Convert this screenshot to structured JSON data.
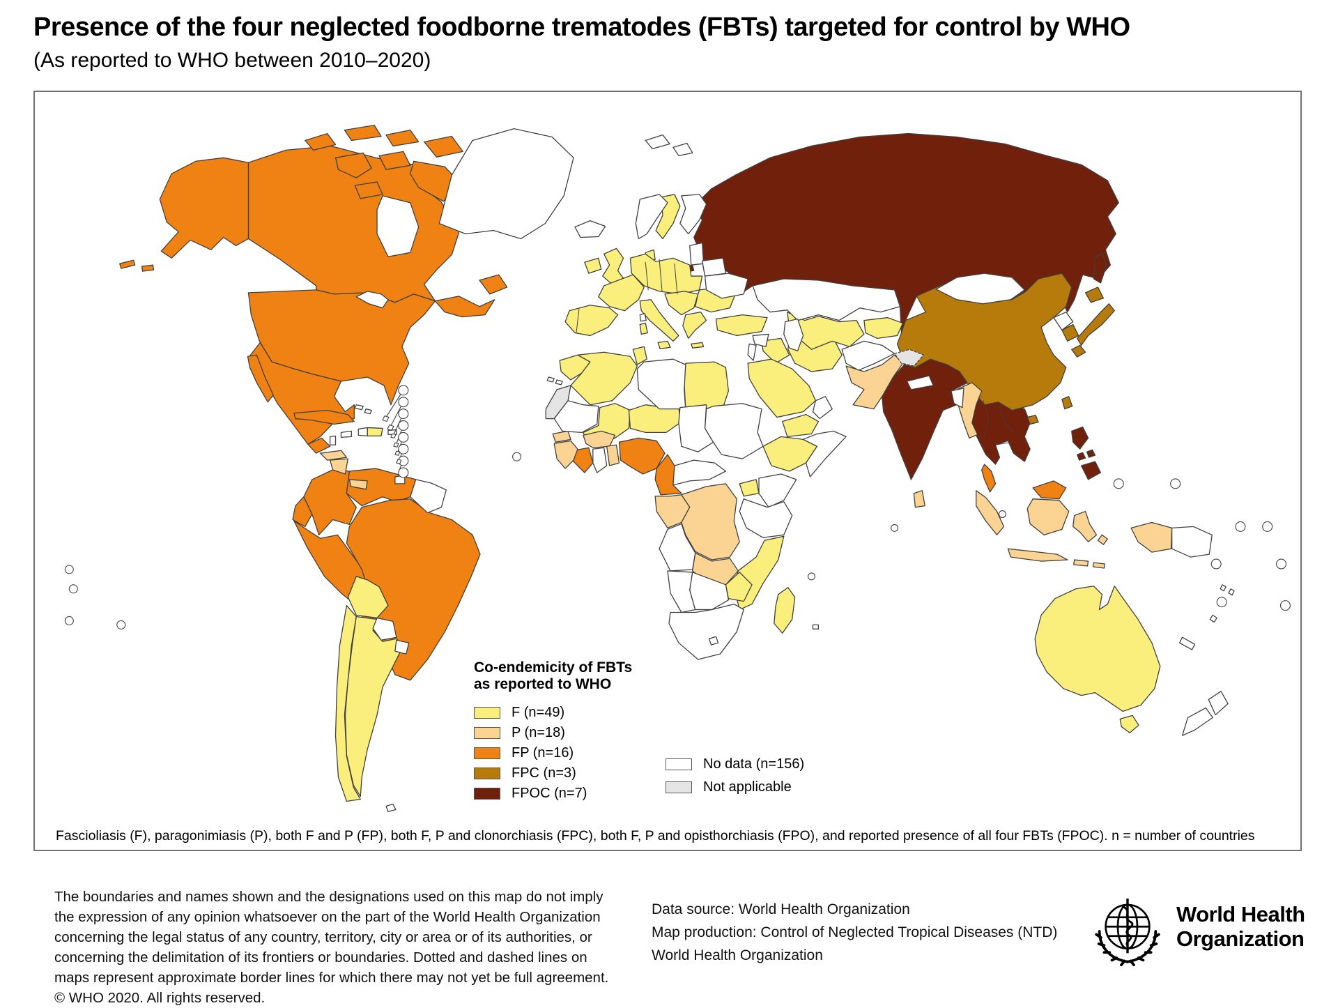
{
  "title": "Presence of the four neglected foodborne trematodes (FBTs) targeted for control by WHO",
  "subtitle": "(As reported to WHO between 2010–2020)",
  "map": {
    "legend": {
      "title_line1": "Co-endemicity of FBTs",
      "title_line2": "as reported to WHO",
      "items": [
        {
          "code": "F",
          "label": "F (n=49)",
          "color": "#FAEE7D"
        },
        {
          "code": "P",
          "label": "P (n=18)",
          "color": "#FBD494"
        },
        {
          "code": "FP",
          "label": "FP (n=16)",
          "color": "#F08214"
        },
        {
          "code": "FPC",
          "label": "FPC (n=3)",
          "color": "#B67B0B"
        },
        {
          "code": "FPOC",
          "label": "FPOC (n=7)",
          "color": "#71200C"
        }
      ],
      "extra_items": [
        {
          "code": "ND",
          "label": "No data (n=156)",
          "color": "#FFFFFF"
        },
        {
          "code": "NA",
          "label": "Not applicable",
          "color": "#E4E4E4"
        }
      ]
    },
    "footnote": "Fascioliasis (F), paragonimiasis (P), both F and P (FP), both F, P and clonorchiasis (FPC), both F, P and opisthorchiasis (FPO), and reported presence of all four FBTs (FPOC). n = number of countries",
    "colors": {
      "F": "#FAEE7D",
      "P": "#FBD494",
      "FP": "#F08214",
      "FPC": "#B67B0B",
      "FPOC": "#71200C",
      "ND": "#FFFFFF",
      "NA": "#E4E4E4",
      "border": "#3F3F3F"
    },
    "regions": {
      "greenland": "ND",
      "svalbard": "ND",
      "iceland": "ND",
      "alaska": "FP",
      "aleutians": "FP",
      "canada": "FP",
      "arctic-islands": "FP",
      "maritimes": "FP",
      "newfoundland": "FP",
      "usa": "FP",
      "mexico": "FP",
      "baja": "FP",
      "hudson-bay": "ND",
      "great-lakes": "ND",
      "guatemala": "FP",
      "belize": "ND",
      "honduras": "P",
      "nicaragua": "P",
      "costa-rica": "FP",
      "panama": "P",
      "cuba": "FP",
      "jamaica": "ND",
      "haiti": "ND",
      "dominican-republic": "F",
      "puerto-rico": "ND",
      "bahamas": "ND",
      "antilles-islands": "ND",
      "trinidad": "ND",
      "colombia": "FP",
      "venezuela": "FP",
      "guyanas": "ND",
      "ecuador": "FP",
      "peru": "FP",
      "brazil": "FP",
      "bolivia": "F",
      "paraguay": "ND",
      "chile": "F",
      "argentina": "F",
      "uruguay": "ND",
      "falklands": "ND",
      "ireland": "F",
      "uk": "F",
      "norway": "ND",
      "sweden": "F",
      "finland": "ND",
      "denmark": "F",
      "baltics": "ND",
      "kaliningrad": "FPOC",
      "belarus": "ND",
      "ukraine": "ND",
      "central-europe": "F",
      "france": "F",
      "iberia": "F",
      "italy": "F",
      "sicily": "F",
      "sardinia": "F",
      "corsica": "ND",
      "balkans": "F",
      "greece": "F",
      "crete": "F",
      "romania-bulgaria": "F",
      "turkey": "F",
      "syria": "ND",
      "levant": "ND",
      "iraq": "F",
      "iran": "F",
      "saudi-arabia": "F",
      "yemen": "F",
      "oman": "ND",
      "kazakhstan": "ND",
      "caspian-sea": "ND",
      "turkmenistan-uzbekistan": "F",
      "kyrgyzstan-tajikistan": "F",
      "afghanistan": "ND",
      "pakistan": "P",
      "kashmir": "NA",
      "india": "FPOC",
      "nepal": "ND",
      "bangladesh": "ND",
      "sri-lanka": "P",
      "china": "FPC",
      "mongolia": "ND",
      "north-korea": "ND",
      "south-korea": "FPC",
      "japan": "FPC",
      "taiwan": "FPC",
      "hainan": "FPC",
      "sakhalin": "FPOC",
      "russia": "FPOC",
      "myanmar": "P",
      "indochina": "FPOC",
      "malaysia-peninsular": "FP",
      "malaysia-borneo": "FP",
      "sumatra": "P",
      "kalimantan": "P",
      "java": "P",
      "sulawesi": "P",
      "lesser-sunda": "P",
      "maluku": "P",
      "west-papua": "P",
      "papua-new-guinea": "ND",
      "philippines": "FPOC",
      "australia": "F",
      "tasmania": "F",
      "new-zealand": "ND",
      "new-caledonia": "ND",
      "pacific-islands": "ND",
      "morocco": "F",
      "western-sahara": "NA",
      "algeria": "F",
      "tunisia": "F",
      "libya": "ND",
      "egypt": "F",
      "mauritania": "ND",
      "mali": "F",
      "niger": "F",
      "chad": "ND",
      "sudan": "ND",
      "ethiopia": "F",
      "somalia": "ND",
      "senegal": "P",
      "guinea-group": "P",
      "cote-divoire": "FP",
      "ghana": "ND",
      "togo-benin": "P",
      "burkina-faso": "P",
      "nigeria": "FP",
      "cameroon": "FP",
      "central-african-republic": "ND",
      "gabon-congo": "P",
      "drc": "P",
      "uganda": "F",
      "kenya": "ND",
      "tanzania": "ND",
      "angola": "ND",
      "zambia": "P",
      "mozambique": "F",
      "zimbabwe": "F",
      "namibia": "ND",
      "botswana": "ND",
      "south-africa": "ND",
      "lesotho": "ND",
      "madagascar": "F",
      "mauritius": "ND",
      "canary-islands": "ND",
      "island-circle": "ND"
    }
  },
  "footer": {
    "disclaimer_lines": [
      "The boundaries and names shown and the designations used on this map do not imply",
      "the expression of any opinion whatsoever on the part of the World Health Organization",
      "concerning the legal status of any country, territory, city or area or of its authorities, or",
      "concerning the delimitation of its frontiers or boundaries. Dotted and dashed lines on",
      "maps represent approximate border lines for which there may not yet be full agreement.",
      "© WHO 2020. All rights reserved."
    ],
    "source_lines": [
      "Data source: World Health Organization",
      "Map production: Control of Neglected Tropical Diseases (NTD)",
      "World Health Organization"
    ],
    "who_logo_line1": "World Health",
    "who_logo_line2": "Organization"
  }
}
